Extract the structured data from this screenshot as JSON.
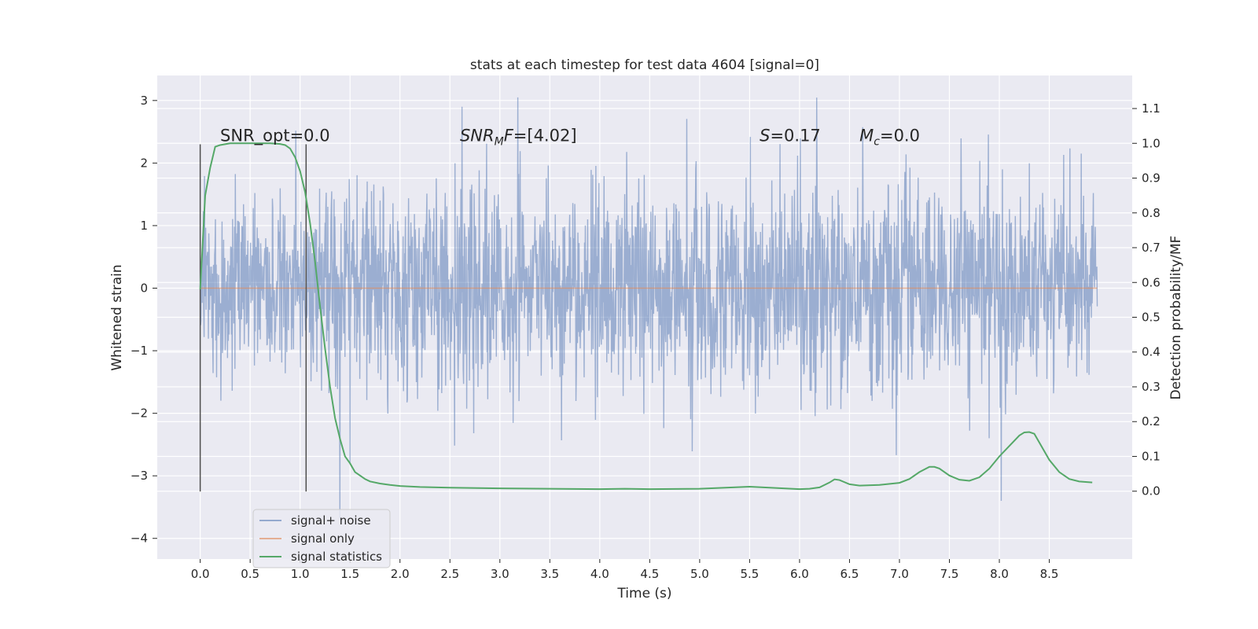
{
  "chart_data": {
    "type": "line",
    "title": "stats at each timestep for test data 4604 [signal=0]",
    "xlabel": "Time (s)",
    "ylabel": "Whitened strain",
    "y2label": "Detection probability/MF",
    "xlim": [
      -0.43,
      9.33
    ],
    "ylim": [
      -4.33,
      3.4
    ],
    "y2lim": [
      -0.195,
      1.195
    ],
    "x_ticks": [
      0.0,
      0.5,
      1.0,
      1.5,
      2.0,
      2.5,
      3.0,
      3.5,
      4.0,
      4.5,
      5.0,
      5.5,
      6.0,
      6.5,
      7.0,
      7.5,
      8.0,
      8.5
    ],
    "x_tick_labels": [
      "0.0",
      "0.5",
      "1.0",
      "1.5",
      "2.0",
      "2.5",
      "3.0",
      "3.5",
      "4.0",
      "4.5",
      "5.0",
      "5.5",
      "6.0",
      "6.5",
      "7.0",
      "7.5",
      "8.0",
      "8.5"
    ],
    "y_ticks": [
      -4,
      -3,
      -2,
      -1,
      0,
      1,
      2,
      3
    ],
    "y_tick_labels": [
      "−4",
      "−3",
      "−2",
      "−1",
      "0",
      "1",
      "2",
      "3"
    ],
    "y2_ticks": [
      0.0,
      0.1,
      0.2,
      0.3,
      0.4,
      0.5,
      0.6,
      0.7,
      0.8,
      0.9,
      1.0,
      1.1
    ],
    "y2_tick_labels": [
      "0.0",
      "0.1",
      "0.2",
      "0.3",
      "0.4",
      "0.5",
      "0.6",
      "0.7",
      "0.8",
      "0.9",
      "1.0",
      "1.1"
    ],
    "grid": true,
    "legend_position": "bottom-left",
    "vlines": [
      {
        "x": 0.0,
        "ymin": -3.25,
        "ymax": 2.3
      },
      {
        "x": 1.06,
        "ymin": -3.25,
        "ymax": 2.3
      }
    ],
    "annotations": [
      {
        "text": "SNR_opt=0.0",
        "x": 0.2,
        "y": 2.35
      },
      {
        "text": "SNR_MF=[4.02]",
        "x": 2.6,
        "y": 2.35
      },
      {
        "text": "S=0.17",
        "x": 5.6,
        "y": 2.35
      },
      {
        "text": "M_c=0.0",
        "x": 6.6,
        "y": 2.35
      }
    ],
    "series": [
      {
        "name": "signal+ noise",
        "axis": "left",
        "color": "#4c72b0",
        "alpha": 0.5,
        "description": "dense noisy whitened strain time series",
        "x_range": [
          0.0,
          8.98
        ],
        "approx_std": 0.8,
        "approx_min": -3.7,
        "approx_max": 3.05,
        "notable_peaks": [
          {
            "x": 3.18,
            "y": 3.05
          },
          {
            "x": 8.02,
            "y": 3.03
          },
          {
            "x": 1.4,
            "y": -3.7
          },
          {
            "x": 8.02,
            "y": -3.4
          },
          {
            "x": 2.62,
            "y": 2.9
          }
        ]
      },
      {
        "name": "signal only",
        "axis": "left",
        "color": "#dd8452",
        "x": [
          0.0,
          8.98
        ],
        "y": [
          0.0,
          0.0
        ]
      },
      {
        "name": "signal statistics",
        "axis": "right",
        "color": "#55a868",
        "x": [
          0.0,
          0.05,
          0.1,
          0.15,
          0.2,
          0.3,
          0.4,
          0.5,
          0.6,
          0.7,
          0.8,
          0.85,
          0.9,
          0.95,
          1.0,
          1.05,
          1.1,
          1.15,
          1.2,
          1.25,
          1.3,
          1.35,
          1.4,
          1.45,
          1.5,
          1.55,
          1.6,
          1.65,
          1.7,
          1.8,
          1.9,
          2.0,
          2.2,
          2.5,
          3.0,
          3.5,
          4.0,
          4.25,
          4.5,
          5.0,
          5.5,
          6.0,
          6.1,
          6.2,
          6.3,
          6.35,
          6.4,
          6.5,
          6.6,
          6.8,
          7.0,
          7.1,
          7.2,
          7.3,
          7.35,
          7.4,
          7.5,
          7.6,
          7.7,
          7.8,
          7.9,
          8.0,
          8.1,
          8.2,
          8.25,
          8.3,
          8.35,
          8.4,
          8.5,
          8.6,
          8.7,
          8.8,
          8.93
        ],
        "y": [
          0.58,
          0.85,
          0.93,
          0.99,
          0.995,
          1.0,
          1.0,
          1.0,
          1.0,
          1.0,
          0.998,
          0.995,
          0.985,
          0.96,
          0.92,
          0.86,
          0.77,
          0.66,
          0.53,
          0.41,
          0.3,
          0.21,
          0.15,
          0.1,
          0.08,
          0.055,
          0.045,
          0.035,
          0.028,
          0.022,
          0.018,
          0.015,
          0.012,
          0.01,
          0.008,
          0.007,
          0.006,
          0.007,
          0.006,
          0.007,
          0.013,
          0.006,
          0.007,
          0.011,
          0.025,
          0.034,
          0.032,
          0.02,
          0.016,
          0.018,
          0.024,
          0.035,
          0.055,
          0.07,
          0.07,
          0.065,
          0.045,
          0.033,
          0.03,
          0.04,
          0.065,
          0.1,
          0.13,
          0.16,
          0.169,
          0.17,
          0.165,
          0.14,
          0.09,
          0.055,
          0.035,
          0.028,
          0.025
        ]
      }
    ]
  }
}
